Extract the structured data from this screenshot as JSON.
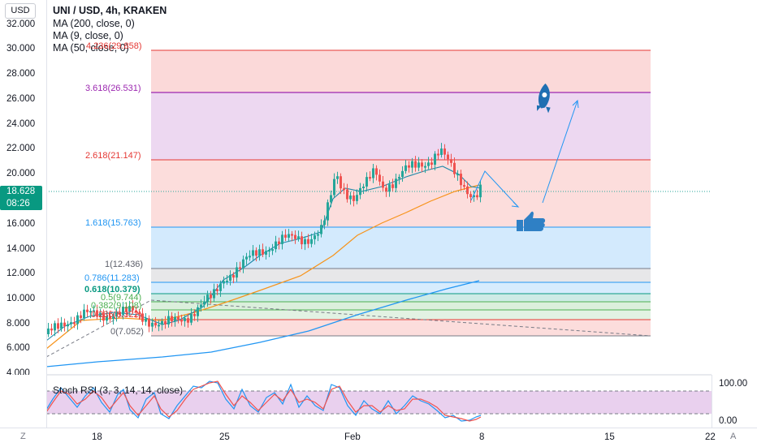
{
  "currency_button": "USD",
  "legend": {
    "title": "UNI / USD, 4h, KRAKEN",
    "ma200": "MA (200, close, 0)",
    "ma9": "MA (9, close, 0)",
    "ma50": "MA (50, close, 0)"
  },
  "price_tag": {
    "price": "18.628",
    "countdown": "08:26"
  },
  "y_axis_ticks": [
    "32.000",
    "30.000",
    "28.000",
    "26.000",
    "24.000",
    "22.000",
    "20.000",
    "16.000",
    "14.000",
    "12.000",
    "10.000",
    "8.000",
    "6.000",
    "4.000"
  ],
  "fib_labels": [
    {
      "text": "4.236(29.858)",
      "color": "#e53935"
    },
    {
      "text": "3.618(26.531)",
      "color": "#9c27b0"
    },
    {
      "text": "2.618(21.147)",
      "color": "#e53935"
    },
    {
      "text": "1.618(15.763)",
      "color": "#2196f3"
    },
    {
      "text": "1(12.436)",
      "color": "#5d606b"
    },
    {
      "text": "0.786(11.283)",
      "color": "#2196f3"
    },
    {
      "text": "0.618(10.379)",
      "color": "#089981"
    },
    {
      "text": "0.5(9.744)",
      "color": "#4caf50"
    },
    {
      "text": "0.382(9.108)",
      "color": "#4caf50"
    },
    {
      "text": "0.236(8.322)",
      "color": "#e53935"
    },
    {
      "text": "0(7.052)",
      "color": "#5d606b"
    }
  ],
  "stoch": {
    "label": "Stoch RSI (3, 3, 14, 14, close)",
    "axis_top": "100.00",
    "axis_bottom": "0.00"
  },
  "x_axis_dates": [
    "18",
    "25",
    "Feb",
    "8",
    "15",
    "22"
  ],
  "corner_left": "Z",
  "corner_right": "A",
  "colors": {
    "up": "#26a69a",
    "down": "#ef5350",
    "ma200": "#2196f3",
    "ma9": "#1e88a8",
    "ma50": "#f7931a",
    "fib_red": "rgba(239,83,80,0.22)",
    "fib_purple": "rgba(156,39,176,0.18)",
    "fib_blue": "rgba(33,150,243,0.2)",
    "fib_grey": "rgba(120,123,134,0.18)",
    "fib_green": "rgba(76,175,80,0.2)",
    "stoch_band": "rgba(156,39,176,0.22)"
  },
  "icons": [
    "rocket-icon",
    "thumbs-up-icon"
  ]
}
